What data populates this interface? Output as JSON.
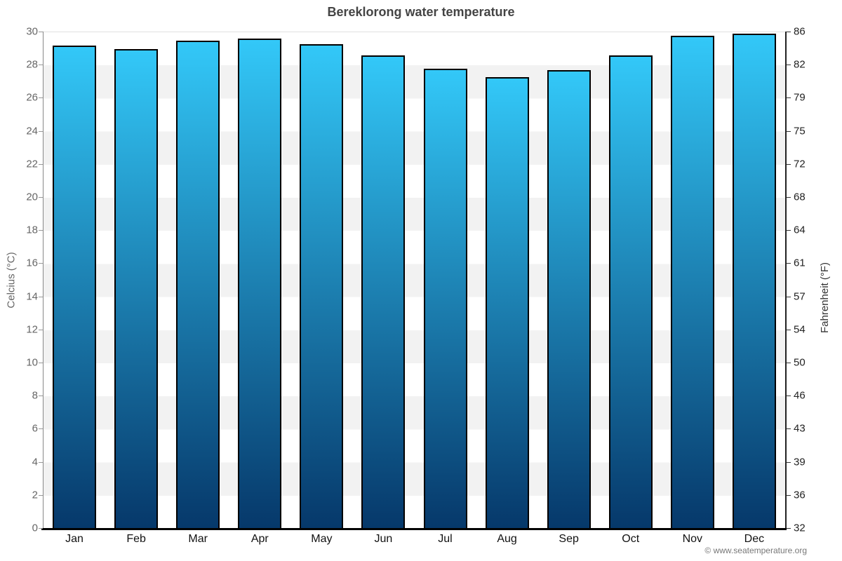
{
  "title": "Bereklorong water temperature",
  "copyright": "© www.seatemperature.org",
  "axes": {
    "left_label": "Celcius (°C)",
    "right_label": "Fahrenheit (°F)",
    "celsius_ticks": [
      30,
      28,
      26,
      24,
      22,
      20,
      18,
      16,
      14,
      12,
      10,
      8,
      6,
      4,
      2,
      0
    ],
    "fahrenheit_ticks": [
      86,
      82,
      79,
      75,
      72,
      68,
      64,
      61,
      57,
      54,
      50,
      46,
      43,
      39,
      36,
      32
    ]
  },
  "chart_data": {
    "type": "bar",
    "title": "Bereklorong water temperature",
    "categories": [
      "Jan",
      "Feb",
      "Mar",
      "Apr",
      "May",
      "Jun",
      "Jul",
      "Aug",
      "Sep",
      "Oct",
      "Nov",
      "Dec"
    ],
    "values": [
      29.2,
      29.0,
      29.5,
      29.6,
      29.3,
      28.6,
      27.8,
      27.3,
      27.7,
      28.6,
      29.8,
      29.9
    ],
    "xlabel": "",
    "ylabel": "Celcius (°C)",
    "ylabel_right": "Fahrenheit (°F)",
    "ylim": [
      0,
      30
    ],
    "ylim_right": [
      32,
      86
    ],
    "grid": "horizontal-stripes-every-2C",
    "legend": "none"
  },
  "colors": {
    "bar_gradient_top": "#33c8f8",
    "bar_gradient_bottom": "#06386a",
    "bar_border": "#000000",
    "stripe_gray": "#f2f2f2",
    "title_text": "#444444",
    "left_tick_text": "#666666",
    "right_tick_text": "#222222",
    "month_text": "#111111",
    "copyright_text": "#777777"
  }
}
